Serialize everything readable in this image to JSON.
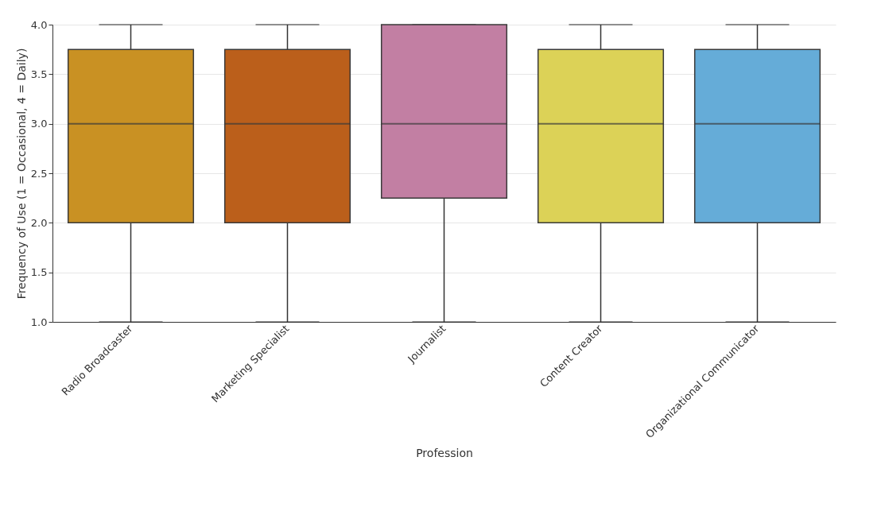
{
  "chart_data": {
    "type": "box",
    "xlabel": "Profession",
    "ylabel": "Frequency of Use (1 = Occasional, 4 = Daily)",
    "categories": [
      "Radio Broadcaster",
      "Marketing Specialist",
      "Journalist",
      "Content Creator",
      "Organizational Communicator"
    ],
    "boxes": [
      {
        "low": 1,
        "q1": 2,
        "median": 3,
        "q3": 3.75,
        "high": 4
      },
      {
        "low": 1,
        "q1": 2,
        "median": 3,
        "q3": 3.75,
        "high": 4
      },
      {
        "low": 1,
        "q1": 2.25,
        "median": 3,
        "q3": 4,
        "high": 4
      },
      {
        "low": 1,
        "q1": 2,
        "median": 3,
        "q3": 3.75,
        "high": 4
      },
      {
        "low": 1,
        "q1": 2,
        "median": 3,
        "q3": 3.75,
        "high": 4
      }
    ],
    "colors": [
      "#c99123",
      "#bb5f1b",
      "#c27fa3",
      "#dcd257",
      "#65acd8"
    ],
    "ylim": [
      1,
      4
    ],
    "yticks": [
      {
        "value": 1,
        "label": "1.0"
      },
      1.5,
      {
        "value": 2,
        "label": "2.0"
      },
      2.5,
      {
        "value": 3,
        "label": "3.0"
      },
      3.5,
      {
        "value": 4,
        "label": "4.0"
      }
    ],
    "grid": "y"
  }
}
